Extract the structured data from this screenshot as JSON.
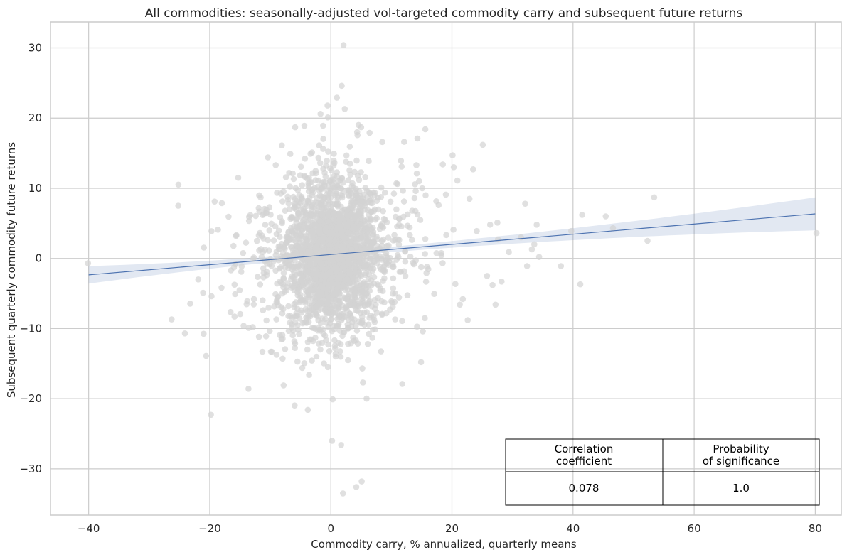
{
  "chart_data": {
    "type": "scatter",
    "title": "All commodities: seasonally-adjusted vol-targeted commodity carry and subsequent future returns",
    "xlabel": "Commodity carry, % annualized, quarterly means",
    "ylabel": "Subsequent quarterly commodity future returns",
    "xlim": [
      -46.3,
      84.3
    ],
    "ylim": [
      -36.6,
      33.7
    ],
    "xticks": [
      -40,
      -20,
      0,
      20,
      40,
      60,
      80
    ],
    "yticks": [
      -30,
      -20,
      -10,
      0,
      10,
      20,
      30
    ],
    "xtick_labels": [
      "−40",
      "−20",
      "0",
      "20",
      "40",
      "60",
      "80"
    ],
    "ytick_labels": [
      "−30",
      "−20",
      "−10",
      "0",
      "10",
      "20",
      "30"
    ],
    "grid": true,
    "point_color": "#d3d3d3",
    "line_color": "#4c72b0",
    "regression": {
      "x_range": [
        -40,
        80
      ],
      "y_at_x_range": [
        -2.35,
        6.35
      ],
      "ci_lower": [
        -3.6,
        4.0
      ],
      "ci_upper": [
        -1.1,
        8.7
      ]
    },
    "outlier_points": [
      [
        -40.1,
        -0.7
      ],
      [
        -25.2,
        7.5
      ],
      [
        -26.3,
        -8.7
      ],
      [
        -24.1,
        -10.7
      ],
      [
        -21.9,
        -3.0
      ],
      [
        -21.1,
        -4.9
      ],
      [
        -20.6,
        -13.9
      ],
      [
        -19.8,
        -22.3
      ],
      [
        -19.7,
        -5.4
      ],
      [
        -16.5,
        -1.7
      ],
      [
        -15.9,
        -8.3
      ],
      [
        -15.6,
        3.3
      ],
      [
        -15.3,
        11.5
      ],
      [
        -14.8,
        -1.9
      ],
      [
        -13.6,
        -18.6
      ],
      [
        -13.5,
        5.9
      ],
      [
        -12.7,
        -5.8
      ],
      [
        -11.6,
        8.7
      ],
      [
        -11.2,
        -7.4
      ],
      [
        -10.4,
        14.4
      ],
      [
        -8.1,
        16.1
      ],
      [
        -7.8,
        -18.1
      ],
      [
        -5.9,
        18.7
      ],
      [
        -4.4,
        11.8
      ],
      [
        -3.8,
        -21.6
      ],
      [
        -3.1,
        15.1
      ],
      [
        -1.7,
        20.6
      ],
      [
        -0.5,
        20.1
      ],
      [
        0.2,
        -26.0
      ],
      [
        0.3,
        -20.1
      ],
      [
        1.0,
        22.9
      ],
      [
        1.8,
        24.6
      ],
      [
        2.1,
        30.4
      ],
      [
        2.3,
        21.3
      ],
      [
        1.7,
        -26.6
      ],
      [
        2.0,
        -33.5
      ],
      [
        4.2,
        -32.6
      ],
      [
        5.1,
        -31.8
      ],
      [
        5.3,
        -17.7
      ],
      [
        5.9,
        -20.0
      ],
      [
        5.0,
        18.7
      ],
      [
        6.4,
        17.9
      ],
      [
        8.5,
        16.6
      ],
      [
        11.7,
        13.1
      ],
      [
        11.0,
        10.6
      ],
      [
        14.9,
        -14.8
      ],
      [
        14.2,
        12.1
      ],
      [
        11.8,
        -17.9
      ],
      [
        15.1,
        10.0
      ],
      [
        15.6,
        18.4
      ],
      [
        15.2,
        -10.4
      ],
      [
        14.3,
        17.1
      ],
      [
        17.8,
        7.6
      ],
      [
        18.5,
        13.4
      ],
      [
        19.0,
        9.1
      ],
      [
        20.1,
        14.7
      ],
      [
        20.3,
        13.0
      ],
      [
        20.9,
        11.1
      ],
      [
        21.3,
        -6.6
      ],
      [
        21.8,
        -5.8
      ],
      [
        22.6,
        -8.8
      ],
      [
        22.9,
        8.5
      ],
      [
        23.5,
        12.7
      ],
      [
        24.1,
        3.9
      ],
      [
        25.1,
        16.2
      ],
      [
        25.8,
        -2.5
      ],
      [
        26.3,
        4.8
      ],
      [
        26.7,
        -3.8
      ],
      [
        27.2,
        -6.6
      ],
      [
        27.5,
        5.1
      ],
      [
        27.6,
        2.7
      ],
      [
        28.2,
        -3.3
      ],
      [
        29.4,
        0.9
      ],
      [
        31.4,
        3.0
      ],
      [
        32.1,
        7.8
      ],
      [
        32.4,
        -1.1
      ],
      [
        33.2,
        1.3
      ],
      [
        33.6,
        2.0
      ],
      [
        34.0,
        4.8
      ],
      [
        34.4,
        0.2
      ],
      [
        38.0,
        -1.1
      ],
      [
        39.7,
        3.9
      ],
      [
        41.2,
        -3.7
      ],
      [
        41.5,
        6.2
      ],
      [
        45.4,
        6.0
      ],
      [
        46.6,
        4.3
      ],
      [
        52.3,
        2.5
      ],
      [
        53.4,
        8.7
      ],
      [
        80.2,
        3.6
      ],
      [
        -0.8,
        13.2
      ],
      [
        -6.3,
        12.1
      ],
      [
        -6.7,
        14.9
      ],
      [
        -9.1,
        13.3
      ],
      [
        -9.9,
        -13.3
      ],
      [
        -10.7,
        -11.1
      ],
      [
        -11.3,
        -13.3
      ],
      [
        -12.9,
        -9.8
      ],
      [
        -13.8,
        -6.1
      ],
      [
        -14.4,
        -9.6
      ],
      [
        -15.8,
        -5.1
      ]
    ],
    "correlation_table": {
      "headers": [
        "Correlation\ncoefficient",
        "Probability\nof significance"
      ],
      "header_lines": [
        [
          "Correlation",
          "coefficient"
        ],
        [
          "Probability",
          "of significance"
        ]
      ],
      "values": [
        "0.078",
        "1.0"
      ]
    }
  }
}
